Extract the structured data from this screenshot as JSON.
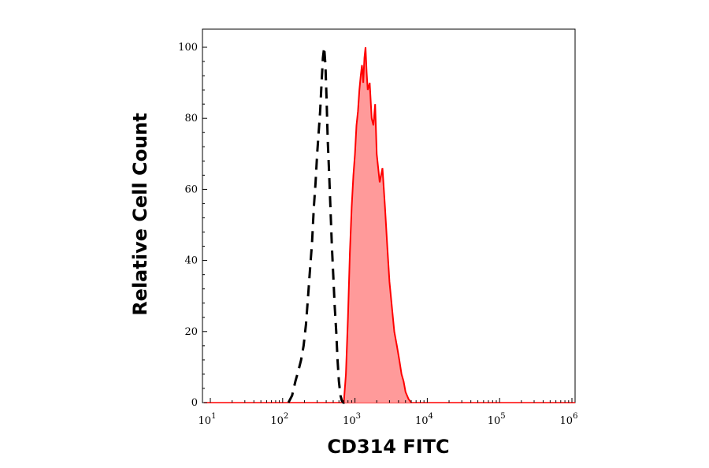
{
  "chart_data": {
    "type": "area",
    "title": "",
    "xlabel": "CD314 FITC",
    "ylabel": "Relative Cell Count",
    "x_scale": "log",
    "xlim": [
      10,
      1000000
    ],
    "ylim": [
      0,
      100
    ],
    "grid": false,
    "legend": "none",
    "x_ticks": [
      {
        "base": "10",
        "exp": "1",
        "value": 10
      },
      {
        "base": "10",
        "exp": "2",
        "value": 100
      },
      {
        "base": "10",
        "exp": "3",
        "value": 1000
      },
      {
        "base": "10",
        "exp": "4",
        "value": 10000
      },
      {
        "base": "10",
        "exp": "5",
        "value": 100000
      },
      {
        "base": "10",
        "exp": "6",
        "value": 1000000
      }
    ],
    "y_ticks": [
      "0",
      "20",
      "40",
      "60",
      "80",
      "100"
    ],
    "series": [
      {
        "style": "dashed-line",
        "color": "#000000",
        "x": [
          120,
          135,
          150,
          165,
          180,
          195,
          210,
          225,
          240,
          255,
          270,
          285,
          300,
          315,
          330,
          345,
          360,
          375,
          390,
          405,
          420,
          440,
          460,
          480,
          500,
          525,
          550,
          575,
          600,
          630,
          660,
          690,
          720
        ],
        "y": [
          0,
          2,
          6,
          9,
          12,
          16,
          22,
          30,
          38,
          45,
          55,
          62,
          70,
          76,
          82,
          90,
          97,
          100,
          95,
          85,
          74,
          64,
          54,
          44,
          36,
          27,
          20,
          12,
          6,
          2,
          0.5,
          0,
          0
        ]
      },
      {
        "style": "filled-area",
        "color": "#ff0000",
        "fill": "#ff9a9a",
        "x": [
          700,
          750,
          800,
          850,
          900,
          950,
          1000,
          1050,
          1100,
          1150,
          1200,
          1250,
          1300,
          1350,
          1400,
          1450,
          1500,
          1600,
          1700,
          1800,
          1900,
          2000,
          2200,
          2400,
          2600,
          2800,
          3000,
          3200,
          3500,
          3800,
          4100,
          4400,
          4700,
          5000,
          5500,
          6000
        ],
        "y": [
          0,
          8,
          24,
          42,
          55,
          64,
          70,
          78,
          82,
          88,
          92,
          95,
          90,
          97,
          100,
          93,
          88,
          90,
          80,
          78,
          84,
          70,
          62,
          66,
          55,
          44,
          34,
          28,
          20,
          16,
          12,
          8,
          6,
          3,
          1,
          0
        ]
      }
    ]
  }
}
